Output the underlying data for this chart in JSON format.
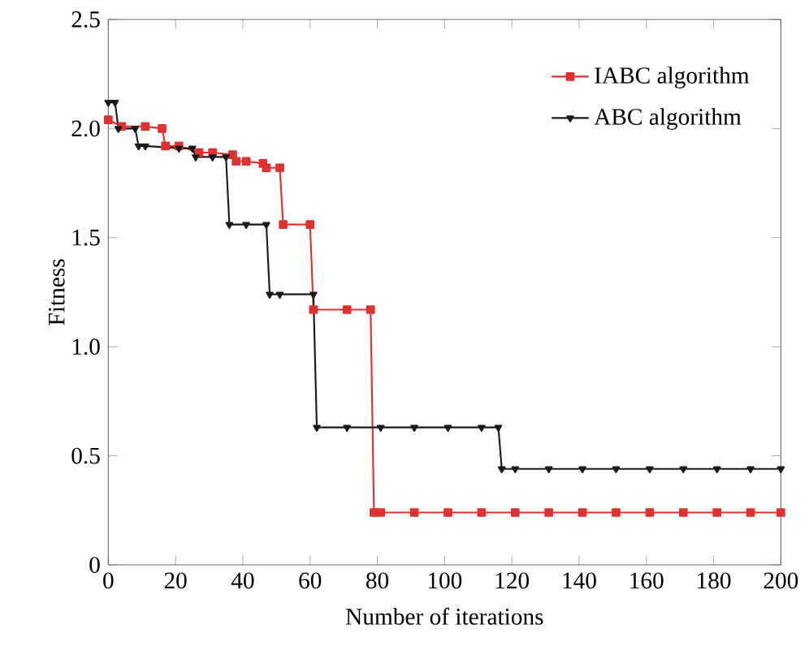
{
  "chart_data": {
    "type": "line",
    "xlabel": "Number of iterations",
    "ylabel": "Fitness",
    "xlim": [
      0,
      200
    ],
    "ylim": [
      0,
      2.5
    ],
    "xticks": [
      0,
      20,
      40,
      60,
      80,
      100,
      120,
      140,
      160,
      180,
      200
    ],
    "yticks": [
      {
        "value": 0,
        "label": "0"
      },
      {
        "value": 0.5,
        "label": "0.5"
      },
      {
        "value": 1,
        "label": "1.0"
      },
      {
        "value": 1.5,
        "label": "1.5"
      },
      {
        "value": 2,
        "label": "2.0"
      },
      {
        "value": 2.5,
        "label": "2.5"
      }
    ],
    "legend": "top right",
    "grid": false,
    "series": [
      {
        "name": "IABC algorithm",
        "color": "#e03030",
        "marker": "square",
        "x": [
          0,
          4,
          11,
          16,
          17,
          21,
          27,
          31,
          37,
          38,
          41,
          46,
          47,
          51,
          52,
          60,
          61,
          71,
          78,
          79,
          81,
          91,
          101,
          111,
          121,
          131,
          141,
          151,
          161,
          171,
          181,
          191,
          200
        ],
        "values": [
          2.04,
          2.01,
          2.01,
          2.0,
          1.92,
          1.92,
          1.89,
          1.89,
          1.88,
          1.85,
          1.85,
          1.84,
          1.82,
          1.82,
          1.56,
          1.56,
          1.17,
          1.17,
          1.17,
          0.24,
          0.24,
          0.24,
          0.24,
          0.24,
          0.24,
          0.24,
          0.24,
          0.24,
          0.24,
          0.24,
          0.24,
          0.24,
          0.24
        ]
      },
      {
        "name": "ABC algorithm",
        "color": "#1a1a1a",
        "marker": "triangle",
        "x": [
          0,
          2,
          3,
          8,
          9,
          11,
          21,
          25,
          26,
          31,
          35,
          36,
          41,
          47,
          48,
          51,
          61,
          62,
          71,
          81,
          91,
          101,
          111,
          116,
          117,
          121,
          131,
          141,
          151,
          161,
          171,
          181,
          191,
          200
        ],
        "values": [
          2.12,
          2.12,
          2.0,
          2.0,
          1.92,
          1.92,
          1.91,
          1.91,
          1.87,
          1.87,
          1.87,
          1.56,
          1.56,
          1.56,
          1.24,
          1.24,
          1.24,
          0.63,
          0.63,
          0.63,
          0.63,
          0.63,
          0.63,
          0.63,
          0.44,
          0.44,
          0.44,
          0.44,
          0.44,
          0.44,
          0.44,
          0.44,
          0.44,
          0.44
        ]
      }
    ]
  }
}
